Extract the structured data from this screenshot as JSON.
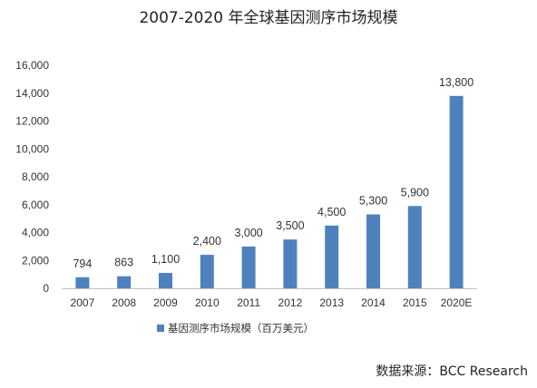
{
  "chart_data": {
    "type": "bar",
    "title": "2007-2020 年全球基因测序市场规模",
    "categories": [
      "2007",
      "2008",
      "2009",
      "2010",
      "2011",
      "2012",
      "2013",
      "2014",
      "2015",
      "2020E"
    ],
    "series": [
      {
        "name": "基因测序市场规模（百万美元）",
        "values": [
          794,
          863,
          1100,
          2400,
          3000,
          3500,
          4500,
          5300,
          5900,
          13800
        ],
        "labels": [
          "794",
          "863",
          "1,100",
          "2,400",
          "3,000",
          "3,500",
          "4,500",
          "5,300",
          "5,900",
          "13,800"
        ]
      }
    ],
    "yticks": [
      "0",
      "2,000",
      "4,000",
      "6,000",
      "8,000",
      "10,000",
      "12,000",
      "14,000",
      "16,000"
    ],
    "ylim": [
      0,
      16000
    ],
    "grid": false,
    "legend_position": "bottom",
    "bar_color": "#4F81BD",
    "source": "数据来源：BCC Research"
  }
}
